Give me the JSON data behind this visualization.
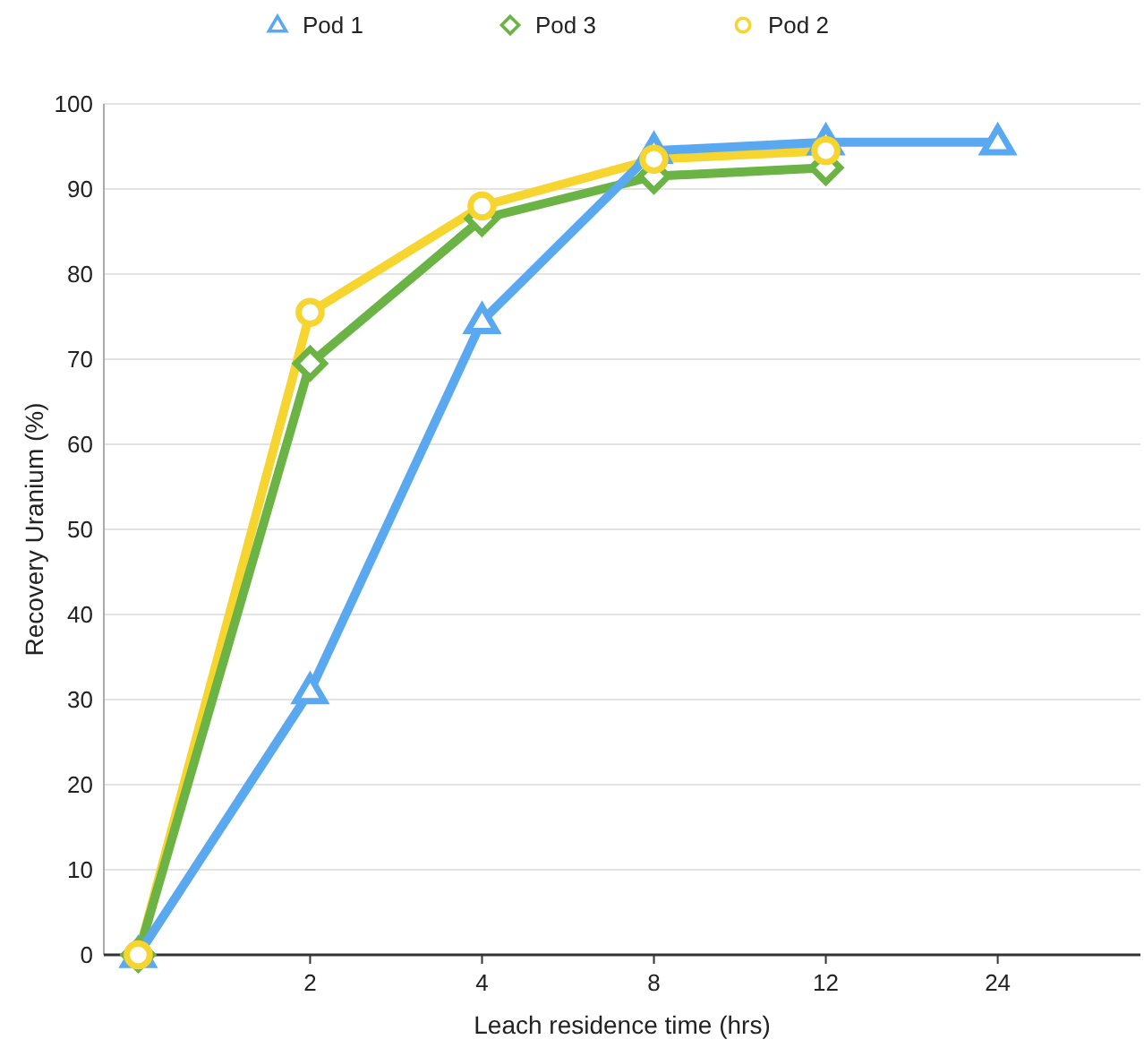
{
  "chart_data": {
    "type": "line",
    "xlabel": "Leach residence time (hrs)",
    "ylabel": "Recovery Uranium (%)",
    "categories": [
      null,
      "2",
      "4",
      "8",
      "12",
      "24"
    ],
    "series": [
      {
        "name": "Pod 1",
        "color": "#5aa9f0",
        "marker": "triangle",
        "values": [
          0,
          31,
          74.5,
          94.5,
          95.5,
          95.5
        ]
      },
      {
        "name": "Pod 3",
        "color": "#6ab344",
        "marker": "diamond",
        "values": [
          0,
          69.5,
          86.5,
          91.5,
          92.5,
          null
        ]
      },
      {
        "name": "Pod 2",
        "color": "#f7d530",
        "marker": "circle",
        "values": [
          0,
          75.5,
          88,
          93.5,
          94.5,
          null
        ]
      }
    ],
    "ylim": [
      0,
      100
    ],
    "yticks": [
      0,
      10,
      20,
      30,
      40,
      50,
      60,
      70,
      80,
      90,
      100
    ],
    "grid": "y",
    "legend": "top",
    "line_style": "solid"
  }
}
